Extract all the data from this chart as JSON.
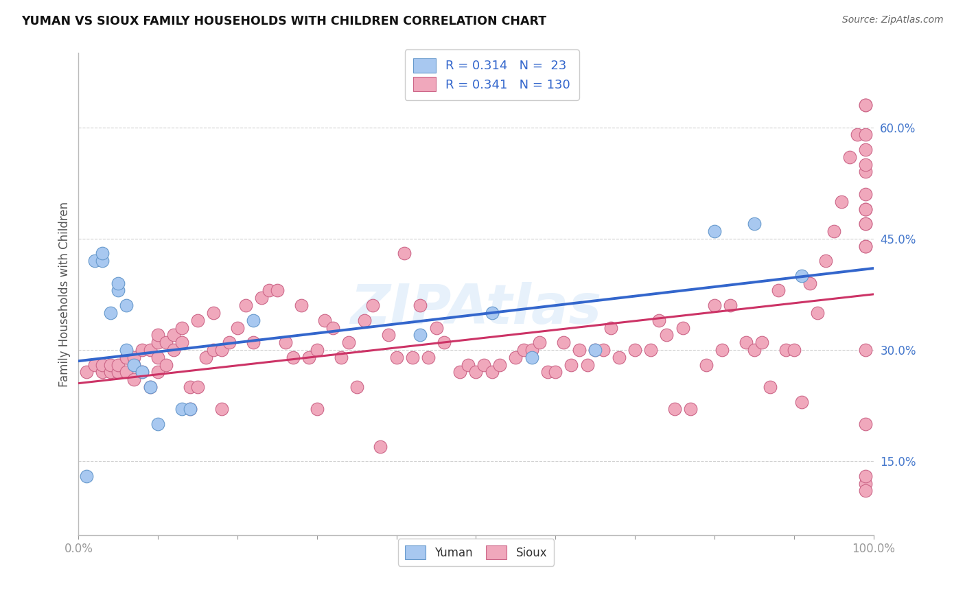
{
  "title": "YUMAN VS SIOUX FAMILY HOUSEHOLDS WITH CHILDREN CORRELATION CHART",
  "source": "Source: ZipAtlas.com",
  "ylabel": "Family Households with Children",
  "xlim": [
    0.0,
    1.0
  ],
  "ylim": [
    0.05,
    0.7
  ],
  "yticks": [
    0.15,
    0.3,
    0.45,
    0.6
  ],
  "ytick_labels": [
    "15.0%",
    "30.0%",
    "45.0%",
    "60.0%"
  ],
  "xtick_labels": [
    "0.0%",
    "",
    "",
    "",
    "",
    "",
    "",
    "",
    "",
    "",
    "100.0%"
  ],
  "background_color": "#ffffff",
  "grid_color": "#d0d0d0",
  "yuman_color": "#a8c8f0",
  "sioux_color": "#f0a8bc",
  "yuman_edge_color": "#6699cc",
  "sioux_edge_color": "#cc6688",
  "yuman_line_color": "#3366cc",
  "sioux_line_color": "#cc3366",
  "tick_color": "#4477cc",
  "legend_R_yuman": "0.314",
  "legend_N_yuman": "23",
  "legend_R_sioux": "0.341",
  "legend_N_sioux": "130",
  "watermark": "ZIPAtlas",
  "yuman_x": [
    0.01,
    0.02,
    0.03,
    0.03,
    0.04,
    0.05,
    0.05,
    0.06,
    0.06,
    0.07,
    0.08,
    0.09,
    0.1,
    0.13,
    0.14,
    0.22,
    0.43,
    0.52,
    0.57,
    0.65,
    0.8,
    0.85,
    0.91
  ],
  "yuman_y": [
    0.13,
    0.42,
    0.42,
    0.43,
    0.35,
    0.38,
    0.39,
    0.36,
    0.3,
    0.28,
    0.27,
    0.25,
    0.2,
    0.22,
    0.22,
    0.34,
    0.32,
    0.35,
    0.29,
    0.3,
    0.46,
    0.47,
    0.4
  ],
  "sioux_x": [
    0.01,
    0.02,
    0.03,
    0.03,
    0.04,
    0.04,
    0.05,
    0.05,
    0.06,
    0.06,
    0.06,
    0.07,
    0.07,
    0.07,
    0.08,
    0.08,
    0.09,
    0.09,
    0.1,
    0.1,
    0.1,
    0.1,
    0.11,
    0.11,
    0.12,
    0.12,
    0.13,
    0.13,
    0.14,
    0.14,
    0.15,
    0.15,
    0.16,
    0.17,
    0.17,
    0.18,
    0.18,
    0.19,
    0.2,
    0.21,
    0.22,
    0.23,
    0.24,
    0.25,
    0.26,
    0.27,
    0.28,
    0.29,
    0.3,
    0.3,
    0.31,
    0.32,
    0.33,
    0.34,
    0.35,
    0.36,
    0.37,
    0.38,
    0.39,
    0.4,
    0.41,
    0.42,
    0.43,
    0.44,
    0.45,
    0.46,
    0.48,
    0.49,
    0.5,
    0.51,
    0.52,
    0.53,
    0.55,
    0.56,
    0.57,
    0.58,
    0.59,
    0.6,
    0.61,
    0.62,
    0.63,
    0.64,
    0.65,
    0.66,
    0.67,
    0.68,
    0.7,
    0.72,
    0.73,
    0.74,
    0.75,
    0.76,
    0.77,
    0.79,
    0.8,
    0.81,
    0.82,
    0.84,
    0.85,
    0.86,
    0.87,
    0.88,
    0.89,
    0.9,
    0.91,
    0.92,
    0.93,
    0.94,
    0.95,
    0.96,
    0.97,
    0.98,
    0.99,
    0.99,
    0.99,
    0.99,
    0.99,
    0.99,
    0.99,
    0.99,
    0.99,
    0.99,
    0.99,
    0.99,
    0.99,
    0.99,
    0.99,
    0.99,
    0.99,
    0.99
  ],
  "sioux_y": [
    0.27,
    0.28,
    0.27,
    0.28,
    0.27,
    0.28,
    0.27,
    0.28,
    0.27,
    0.29,
    0.29,
    0.26,
    0.28,
    0.29,
    0.27,
    0.3,
    0.25,
    0.3,
    0.27,
    0.29,
    0.31,
    0.32,
    0.28,
    0.31,
    0.3,
    0.32,
    0.31,
    0.33,
    0.22,
    0.25,
    0.25,
    0.34,
    0.29,
    0.3,
    0.35,
    0.22,
    0.3,
    0.31,
    0.33,
    0.36,
    0.31,
    0.37,
    0.38,
    0.38,
    0.31,
    0.29,
    0.36,
    0.29,
    0.22,
    0.3,
    0.34,
    0.33,
    0.29,
    0.31,
    0.25,
    0.34,
    0.36,
    0.17,
    0.32,
    0.29,
    0.43,
    0.29,
    0.36,
    0.29,
    0.33,
    0.31,
    0.27,
    0.28,
    0.27,
    0.28,
    0.27,
    0.28,
    0.29,
    0.3,
    0.3,
    0.31,
    0.27,
    0.27,
    0.31,
    0.28,
    0.3,
    0.28,
    0.3,
    0.3,
    0.33,
    0.29,
    0.3,
    0.3,
    0.34,
    0.32,
    0.22,
    0.33,
    0.22,
    0.28,
    0.36,
    0.3,
    0.36,
    0.31,
    0.3,
    0.31,
    0.25,
    0.38,
    0.3,
    0.3,
    0.23,
    0.39,
    0.35,
    0.42,
    0.46,
    0.5,
    0.56,
    0.59,
    0.63,
    0.44,
    0.47,
    0.49,
    0.51,
    0.54,
    0.57,
    0.59,
    0.63,
    0.44,
    0.47,
    0.49,
    0.55,
    0.12,
    0.2,
    0.3,
    0.11,
    0.13
  ]
}
